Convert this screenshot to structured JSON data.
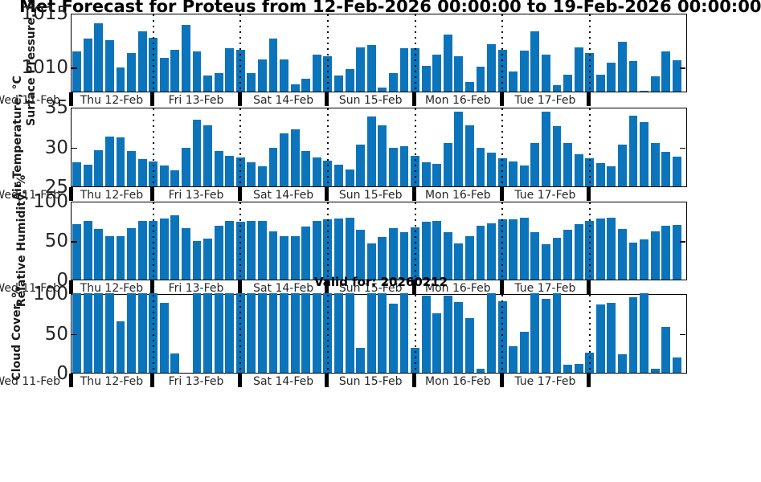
{
  "title": "Met Forecast for Proteus from 12-Feb-2026 00:00:00 to 19-Feb-2026 00:00:00",
  "annotation": "Valid for: 20260212",
  "colors": {
    "bar": "#0b74ba",
    "axis": "#000000",
    "tick_text": "#262626"
  },
  "x_axis": {
    "day_labels": [
      "Wed 11-Feb",
      "Thu 12-Feb",
      "Fri 13-Feb",
      "Sat 14-Feb",
      "Sun 15-Feb",
      "Mon 16-Feb",
      "Tue 17-Feb"
    ],
    "note": "vertical dotted gridlines and thick axis ticks mark each midnight; bars are 3-hourly"
  },
  "chart_data": [
    {
      "type": "bar",
      "ylabel": "Surface Pressure, mb",
      "ytick_values": [
        1015,
        1010
      ],
      "ytick_labels": [
        "1015",
        "1010"
      ],
      "ylim": [
        1007.7,
        1015
      ],
      "values": [
        1011.4,
        1012.6,
        1014.0,
        1012.5,
        1009.9,
        1011.3,
        1013.3,
        1012.7,
        1010.8,
        1011.6,
        1013.9,
        1011.4,
        1009.2,
        1009.4,
        1011.7,
        1011.6,
        1009.4,
        1010.7,
        1012.6,
        1010.7,
        1008.4,
        1008.9,
        1011.1,
        1011.0,
        1009.2,
        1009.8,
        1011.8,
        1012.0,
        1008.1,
        1009.4,
        1011.7,
        1011.7,
        1010.1,
        1011.1,
        1013.0,
        1011.0,
        1008.6,
        1010.0,
        1012.1,
        1011.6,
        1009.6,
        1011.5,
        1013.3,
        1011.1,
        1008.3,
        1009.3,
        1011.8,
        1011.3,
        1009.3,
        1010.4,
        1012.3,
        1010.5,
        1007.8,
        1009.1,
        1011.4,
        1010.6
      ]
    },
    {
      "type": "bar",
      "ylabel": "Air Temperature, °C",
      "ytick_values": [
        35,
        30,
        25
      ],
      "ytick_labels": [
        "35",
        "30",
        "25"
      ],
      "ylim": [
        25,
        35
      ],
      "values": [
        28.0,
        27.7,
        29.5,
        31.3,
        31.2,
        29.4,
        28.4,
        28.1,
        27.6,
        27.0,
        29.9,
        33.4,
        32.7,
        29.4,
        28.8,
        28.6,
        28.0,
        27.5,
        29.9,
        31.7,
        32.2,
        29.4,
        28.6,
        28.2,
        27.7,
        27.1,
        30.3,
        33.8,
        32.7,
        29.9,
        30.1,
        28.8,
        28.0,
        27.8,
        30.5,
        34.4,
        32.7,
        29.9,
        29.2,
        28.5,
        28.1,
        27.6,
        30.5,
        34.4,
        32.6,
        30.5,
        29.0,
        28.5,
        27.9,
        27.5,
        30.3,
        33.9,
        33.1,
        30.5,
        29.3,
        28.7
      ]
    },
    {
      "type": "bar",
      "ylabel": "Relative Humidity, %",
      "ytick_values": [
        100,
        50,
        0
      ],
      "ytick_labels": [
        "100",
        "50",
        "0"
      ],
      "ylim": [
        0,
        100
      ],
      "values": [
        70,
        74,
        64,
        55,
        55,
        65,
        74,
        75,
        78,
        82,
        65,
        49,
        52,
        68,
        74,
        73,
        75,
        75,
        61,
        55,
        55,
        67,
        75,
        77,
        78,
        79,
        63,
        46,
        54,
        65,
        60,
        66,
        73,
        75,
        60,
        46,
        55,
        68,
        71,
        77,
        77,
        79,
        60,
        45,
        53,
        63,
        70,
        75,
        78,
        79,
        64,
        47,
        51,
        61,
        68,
        69
      ]
    },
    {
      "type": "bar",
      "ylabel": "Cloud Cover, %",
      "ytick_values": [
        100,
        50,
        0
      ],
      "ytick_labels": [
        "100",
        "50",
        "0"
      ],
      "ylim": [
        0,
        100
      ],
      "values": [
        100,
        100,
        100,
        100,
        65,
        100,
        100,
        100,
        88,
        24,
        0,
        100,
        100,
        100,
        100,
        100,
        100,
        100,
        100,
        100,
        100,
        100,
        100,
        100,
        100,
        100,
        31,
        100,
        100,
        87,
        100,
        31,
        97,
        75,
        97,
        89,
        69,
        5,
        100,
        90,
        33,
        52,
        100,
        93,
        100,
        10,
        11,
        25,
        86,
        88,
        23,
        95,
        100,
        5,
        58,
        19
      ]
    }
  ]
}
